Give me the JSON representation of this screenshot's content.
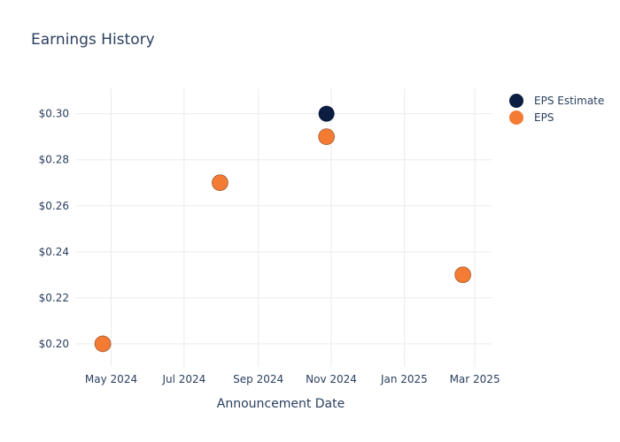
{
  "colors": {
    "estimate": "#0b1e41",
    "actual": "#f47b34",
    "grid": "#ebebeb",
    "text": "#2a3f5f",
    "title": "#2a3f5f"
  },
  "chart_data": {
    "type": "scatter",
    "title": "Earnings History",
    "xlabel": "Announcement Date",
    "ylabel": "",
    "x_ticks": [
      "May 2024",
      "Jul 2024",
      "Sep 2024",
      "Nov 2024",
      "Jan 2025",
      "Mar 2025"
    ],
    "x_tick_dates": [
      "2024-05-01",
      "2024-07-01",
      "2024-09-01",
      "2024-11-01",
      "2025-01-01",
      "2025-03-01"
    ],
    "y_ticks": [
      "$0.20",
      "$0.22",
      "$0.24",
      "$0.26",
      "$0.28",
      "$0.30"
    ],
    "y_tick_values": [
      0.2,
      0.22,
      0.24,
      0.26,
      0.28,
      0.3
    ],
    "xlim": [
      "2024-04-01",
      "2025-03-15"
    ],
    "ylim": [
      0.19,
      0.311
    ],
    "grid": true,
    "legend_position": "top-right",
    "series": [
      {
        "name": "EPS Estimate",
        "color": "#0b1e41",
        "points": [
          {
            "x": "2024-04-24",
            "y": 0.2
          },
          {
            "x": "2024-07-31",
            "y": 0.27
          },
          {
            "x": "2024-10-28",
            "y": 0.3
          },
          {
            "x": "2025-02-19",
            "y": 0.23
          }
        ]
      },
      {
        "name": "EPS",
        "color": "#f47b34",
        "points": [
          {
            "x": "2024-04-24",
            "y": 0.2
          },
          {
            "x": "2024-07-31",
            "y": 0.27
          },
          {
            "x": "2024-10-28",
            "y": 0.29
          },
          {
            "x": "2025-02-19",
            "y": 0.23
          }
        ]
      }
    ]
  }
}
